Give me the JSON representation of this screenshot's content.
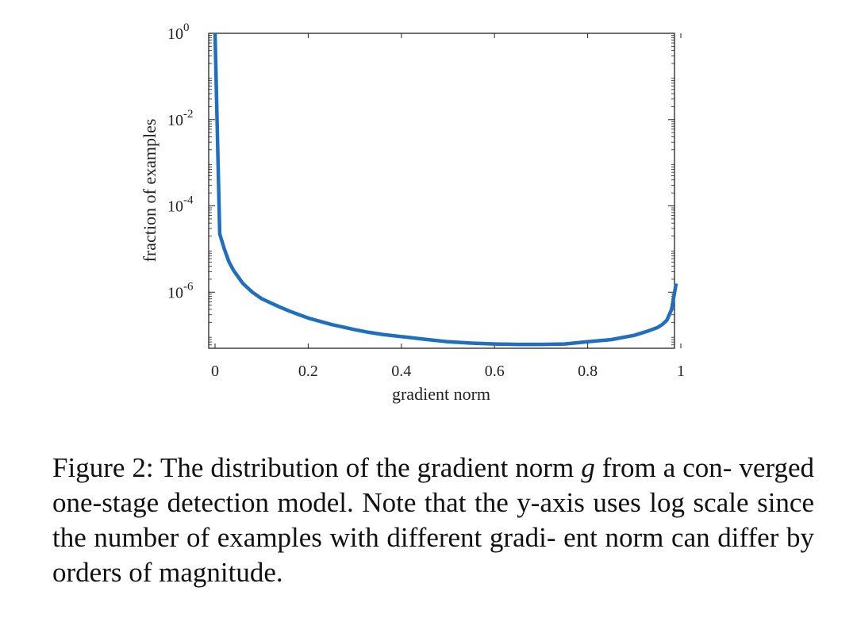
{
  "caption": {
    "label": "Figure 2:",
    "text_pre": "The distribution of the gradient norm",
    "symbol": "g",
    "text_post": "from a con- verged one-stage detection model. Note that the y-axis uses log scale since the number of examples with different gradi- ent norm can differ by orders of magnitude."
  },
  "chart_data": {
    "type": "line",
    "xlabel": "gradient norm",
    "ylabel": "fraction of examples",
    "xlim": [
      0,
      1
    ],
    "ylim_log10": [
      -7.3,
      0
    ],
    "yscale": "log",
    "x_ticks": [
      "0",
      "0.2",
      "0.4",
      "0.6",
      "0.8",
      "1"
    ],
    "x_tick_values": [
      0,
      0.2,
      0.4,
      0.6,
      0.8,
      1
    ],
    "y_ticks": [
      {
        "value": -6,
        "base": "10",
        "exp": "-6"
      },
      {
        "value": -4,
        "base": "10",
        "exp": "-4"
      },
      {
        "value": -2,
        "base": "10",
        "exp": "-2"
      },
      {
        "value": 0,
        "base": "10",
        "exp": "0"
      }
    ],
    "series": [
      {
        "color": "#1f6fbf",
        "x": [
          0.0,
          0.01,
          0.02,
          0.03,
          0.04,
          0.05,
          0.06,
          0.07,
          0.08,
          0.1,
          0.12,
          0.14,
          0.16,
          0.18,
          0.2,
          0.22,
          0.25,
          0.28,
          0.3,
          0.33,
          0.36,
          0.4,
          0.45,
          0.5,
          0.55,
          0.6,
          0.65,
          0.7,
          0.75,
          0.8,
          0.85,
          0.9,
          0.93,
          0.95,
          0.96,
          0.97,
          0.98,
          0.99
        ],
        "y_log10": [
          0.0,
          -4.65,
          -5.0,
          -5.3,
          -5.5,
          -5.65,
          -5.8,
          -5.9,
          -6.0,
          -6.15,
          -6.25,
          -6.35,
          -6.44,
          -6.52,
          -6.6,
          -6.66,
          -6.75,
          -6.82,
          -6.87,
          -6.93,
          -6.98,
          -7.03,
          -7.09,
          -7.15,
          -7.18,
          -7.2,
          -7.21,
          -7.21,
          -7.2,
          -7.15,
          -7.1,
          -7.0,
          -6.9,
          -6.82,
          -6.75,
          -6.65,
          -6.4,
          -5.8
        ]
      }
    ]
  }
}
